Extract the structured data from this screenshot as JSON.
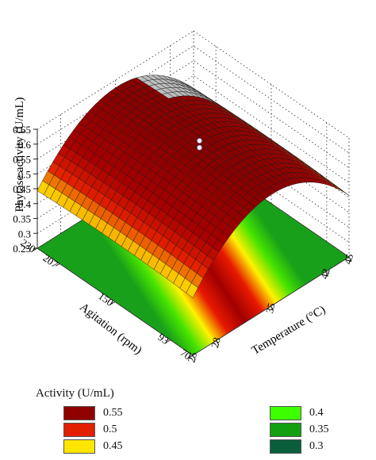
{
  "chart_data": {
    "type": "surface3d",
    "zlabel": "Phytase activity (U/mL)",
    "xlabel": "Temperature (°C)",
    "ylabel": "Agitation (rpm)",
    "z_ticks": [
      "0.25",
      "0.3",
      "0.35",
      "0.4",
      "0.45",
      "0.5",
      "0.55",
      "0.6",
      "0.65"
    ],
    "x_ticks": [
      "25",
      "28",
      "35",
      "42",
      "45"
    ],
    "x_tick_values": [
      25,
      28,
      35,
      42,
      45
    ],
    "y_ticks": [
      "70",
      "93",
      "150",
      "207",
      "230"
    ],
    "y_tick_values": [
      70,
      93,
      150,
      207,
      230
    ],
    "zlim": [
      0.25,
      0.65
    ],
    "xlim": [
      25,
      45
    ],
    "ylim": [
      70,
      230
    ],
    "surface_model": "z = 0.632 - 0.00174*(T - 35.2)^2 - 0.0000012*(A - 150)^2",
    "surface_samples": [
      {
        "temperature": 25,
        "activity": 0.45
      },
      {
        "temperature": 28,
        "activity": 0.54
      },
      {
        "temperature": 35,
        "activity": 0.63
      },
      {
        "temperature": 42,
        "activity": 0.55
      },
      {
        "temperature": 45,
        "activity": 0.46
      }
    ],
    "data_points": [
      {
        "temperature": 35,
        "agitation": 150,
        "activity": 0.61
      },
      {
        "temperature": 35,
        "agitation": 150,
        "activity": 0.603
      }
    ],
    "legend": {
      "title": "Activity (U/mL)",
      "items": [
        {
          "label": "0.55",
          "color": "#8f0000"
        },
        {
          "label": "0.5",
          "color": "#e21f00"
        },
        {
          "label": "0.45",
          "color": "#ffe600"
        },
        {
          "label": "0.4",
          "color": "#3cff00"
        },
        {
          "label": "0.35",
          "color": "#12a012"
        },
        {
          "label": "0.3",
          "color": "#0b5e3c"
        }
      ],
      "placement": "bottom"
    }
  }
}
